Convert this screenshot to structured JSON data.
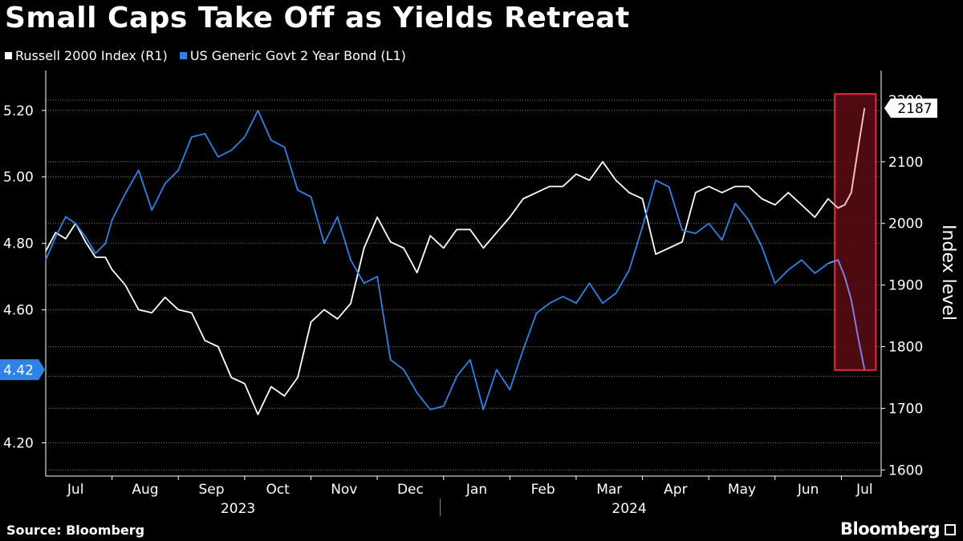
{
  "colors": {
    "russell": "#ffffff",
    "bond": "#2f83e6",
    "highlight_fill": "#5c0c14",
    "highlight_border": "#e8283c",
    "grid": "#7a7a7a"
  },
  "chart_data": {
    "type": "line",
    "title": "Small Caps Take Off as Yields Retreat",
    "legend": [
      {
        "label": "Russell 2000 Index (R1)",
        "color": "#ffffff"
      },
      {
        "label": "US Generic Govt 2 Year Bond (L1)",
        "color": "#2f83e6"
      }
    ],
    "left_axis": {
      "ticks": [
        "5.20",
        "5.00",
        "4.80",
        "4.60",
        "4.20"
      ],
      "tick_values": [
        5.2,
        5.0,
        4.8,
        4.6,
        4.2
      ],
      "range": [
        4.1,
        5.32
      ]
    },
    "right_axis": {
      "label": "Index level",
      "ticks": [
        "2100",
        "2000",
        "1900",
        "1800",
        "1700",
        "1600"
      ],
      "tick_values": [
        2100,
        2000,
        1900,
        1800,
        1700,
        1600
      ],
      "partial_tick": "2200",
      "range": [
        1590,
        2248
      ]
    },
    "x_axis": {
      "months": [
        "Jul",
        "Aug",
        "Sep",
        "Oct",
        "Nov",
        "Dec",
        "Jan",
        "Feb",
        "Mar",
        "Apr",
        "May",
        "Jun",
        "Jul"
      ],
      "month_index": [
        0.45,
        1.5,
        2.5,
        3.5,
        4.5,
        5.5,
        6.5,
        7.5,
        8.5,
        9.5,
        10.5,
        11.5,
        12.35
      ],
      "years": [
        {
          "label": "2023",
          "center": 2.9
        },
        {
          "label": "2024",
          "center": 8.8
        }
      ],
      "x_range": [
        0,
        12.6
      ]
    },
    "end_labels": {
      "russell": "2187",
      "bond": "4.42"
    },
    "highlight": {
      "x_start": 11.9,
      "x_end": 12.52,
      "y_top": 2210,
      "y_bottom": 1762
    },
    "series": [
      {
        "name": "Russell 2000 Index (R1)",
        "axis": "right",
        "x": [
          0.0,
          0.15,
          0.3,
          0.45,
          0.6,
          0.75,
          0.9,
          1.0,
          1.2,
          1.4,
          1.6,
          1.8,
          2.0,
          2.2,
          2.4,
          2.6,
          2.8,
          3.0,
          3.2,
          3.4,
          3.6,
          3.8,
          4.0,
          4.2,
          4.4,
          4.6,
          4.8,
          5.0,
          5.2,
          5.4,
          5.6,
          5.8,
          6.0,
          6.2,
          6.4,
          6.6,
          6.8,
          7.0,
          7.2,
          7.4,
          7.6,
          7.8,
          8.0,
          8.2,
          8.4,
          8.6,
          8.8,
          9.0,
          9.2,
          9.4,
          9.6,
          9.8,
          10.0,
          10.2,
          10.4,
          10.6,
          10.8,
          11.0,
          11.2,
          11.4,
          11.6,
          11.8,
          11.95,
          12.05,
          12.15,
          12.25,
          12.35
        ],
        "values": [
          1955,
          1985,
          1975,
          2000,
          1970,
          1945,
          1945,
          1925,
          1900,
          1860,
          1855,
          1880,
          1860,
          1855,
          1810,
          1800,
          1750,
          1740,
          1690,
          1735,
          1720,
          1750,
          1840,
          1860,
          1845,
          1870,
          1960,
          2010,
          1970,
          1960,
          1920,
          1980,
          1960,
          1990,
          1990,
          1960,
          1985,
          2010,
          2040,
          2050,
          2060,
          2060,
          2080,
          2070,
          2100,
          2070,
          2050,
          2040,
          1950,
          1960,
          1970,
          2050,
          2060,
          2050,
          2060,
          2060,
          2040,
          2030,
          2050,
          2030,
          2010,
          2040,
          2025,
          2030,
          2050,
          2120,
          2187
        ]
      },
      {
        "name": "US Generic Govt 2 Year Bond (L1)",
        "axis": "left",
        "x": [
          0.0,
          0.15,
          0.3,
          0.45,
          0.6,
          0.75,
          0.9,
          1.0,
          1.2,
          1.4,
          1.6,
          1.8,
          2.0,
          2.2,
          2.4,
          2.6,
          2.8,
          3.0,
          3.2,
          3.4,
          3.6,
          3.8,
          4.0,
          4.2,
          4.4,
          4.6,
          4.8,
          5.0,
          5.2,
          5.4,
          5.6,
          5.8,
          6.0,
          6.2,
          6.4,
          6.6,
          6.8,
          7.0,
          7.2,
          7.4,
          7.6,
          7.8,
          8.0,
          8.2,
          8.4,
          8.6,
          8.8,
          9.0,
          9.2,
          9.4,
          9.6,
          9.8,
          10.0,
          10.2,
          10.4,
          10.6,
          10.8,
          11.0,
          11.2,
          11.4,
          11.6,
          11.8,
          11.95,
          12.05,
          12.15,
          12.25,
          12.35
        ],
        "values": [
          4.75,
          4.82,
          4.88,
          4.86,
          4.82,
          4.77,
          4.8,
          4.87,
          4.95,
          5.02,
          4.9,
          4.98,
          5.02,
          5.12,
          5.13,
          5.06,
          5.08,
          5.12,
          5.2,
          5.11,
          5.09,
          4.96,
          4.94,
          4.8,
          4.88,
          4.75,
          4.68,
          4.7,
          4.45,
          4.42,
          4.35,
          4.3,
          4.31,
          4.4,
          4.45,
          4.3,
          4.42,
          4.36,
          4.48,
          4.59,
          4.62,
          4.64,
          4.62,
          4.68,
          4.62,
          4.65,
          4.72,
          4.85,
          4.99,
          4.97,
          4.84,
          4.83,
          4.86,
          4.81,
          4.92,
          4.87,
          4.79,
          4.68,
          4.72,
          4.75,
          4.71,
          4.74,
          4.75,
          4.7,
          4.63,
          4.52,
          4.42
        ]
      }
    ]
  }
}
